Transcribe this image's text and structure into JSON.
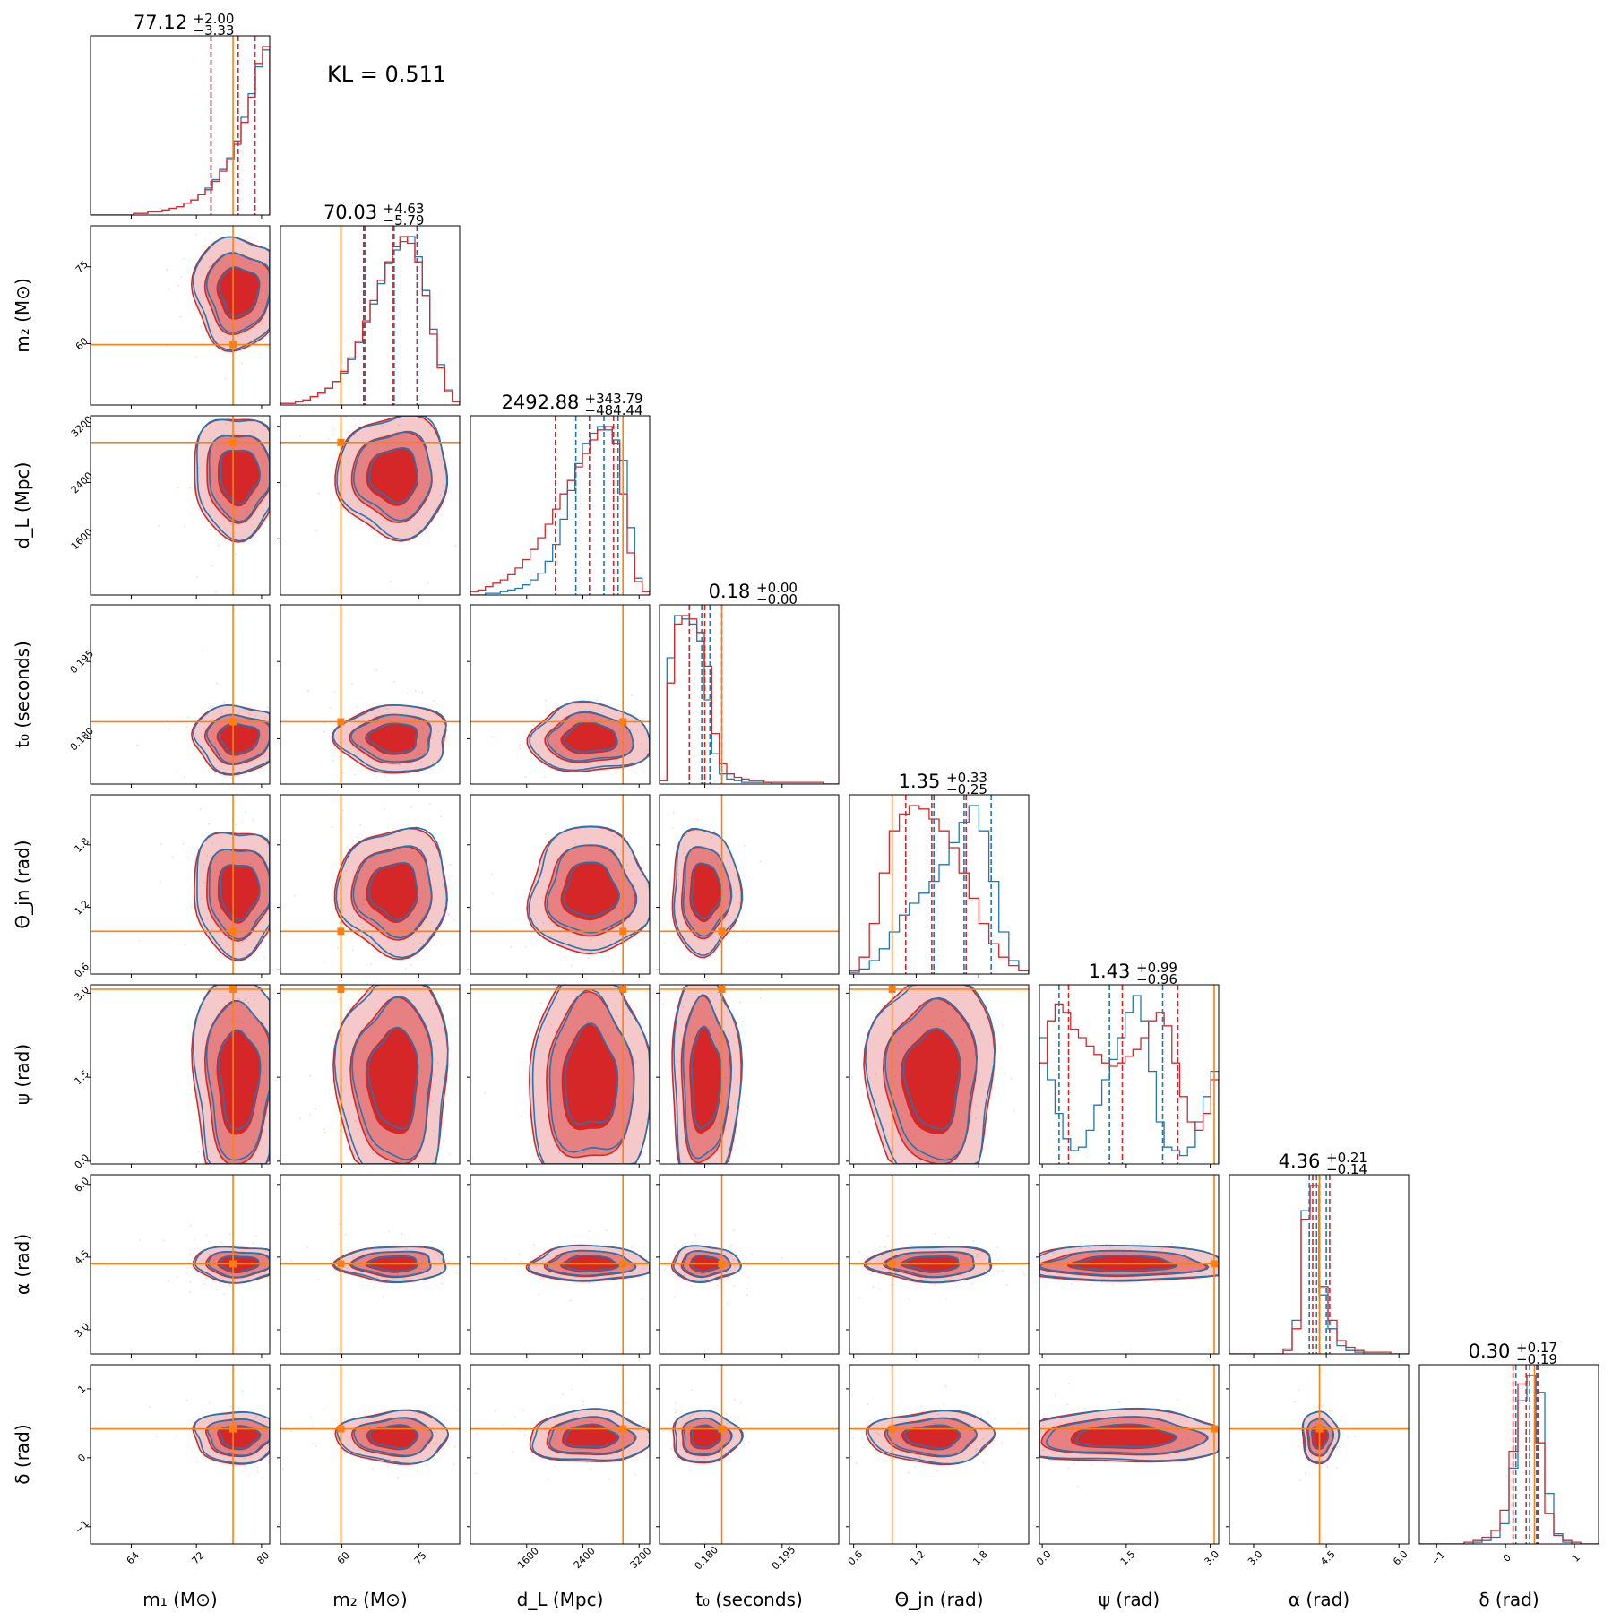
{
  "annotation": "KL = 0.511",
  "colors": {
    "series_a": "#d62728",
    "series_b": "#1f77b4",
    "truth": "#ff7f0e",
    "frame": "#000000"
  },
  "chart_data": {
    "type": "corner",
    "grid": false,
    "legend": "none",
    "parameters": [
      {
        "key": "m1",
        "label": "m₁ (M⊙)",
        "range": [
          59,
          81
        ],
        "ticks": [
          64,
          72,
          80
        ],
        "tick_labels": [
          "64",
          "72",
          "80"
        ],
        "median": 77.12,
        "plus": "+2.00",
        "minus": "−3.33",
        "title_value": "77.12",
        "truth": 76.5,
        "quantiles_a": [
          73.79,
          77.12,
          79.12
        ],
        "quantiles_b": [
          73.79,
          77.12,
          79.2
        ]
      },
      {
        "key": "m2",
        "label": "m₂ (M⊙)",
        "range": [
          48,
          83
        ],
        "ticks": [
          60,
          75
        ],
        "tick_labels": [
          "60",
          "75"
        ],
        "median": 70.03,
        "plus": "+4.63",
        "minus": "−5.79",
        "title_value": "70.03",
        "truth": 59.8,
        "quantiles_a": [
          64.24,
          70.03,
          74.66
        ],
        "quantiles_b": [
          64.5,
          70.2,
          74.8
        ]
      },
      {
        "key": "dL",
        "label": "d_L (Mpc)",
        "range": [
          800,
          3350
        ],
        "ticks": [
          1600,
          2400,
          3200
        ],
        "tick_labels": [
          "1600",
          "2400",
          "3200"
        ],
        "median": 2492.88,
        "plus": "+343.79",
        "minus": "−484.44",
        "title_value": "2492.88",
        "truth": 2970,
        "quantiles_a": [
          2008.44,
          2492.88,
          2836.67
        ],
        "quantiles_b": [
          2300,
          2700,
          2900
        ]
      },
      {
        "key": "t0",
        "label": "t₀ (seconds)",
        "range": [
          0.1712,
          0.206
        ],
        "ticks": [
          0.18,
          0.195
        ],
        "tick_labels": [
          "0.180",
          "0.195"
        ],
        "median": 0.18,
        "plus": "+0.00",
        "minus": "−0.00",
        "title_value": "0.18",
        "truth": 0.1833,
        "quantiles_a": [
          0.177,
          0.18,
          0.1833
        ],
        "quantiles_b": [
          0.177,
          0.1794,
          0.181
        ]
      },
      {
        "key": "theta_jn",
        "label": "Θ_jn (rad)",
        "range": [
          0.56,
          2.28
        ],
        "ticks": [
          0.6,
          1.2,
          1.8
        ],
        "tick_labels": [
          "0.6",
          "1.2",
          "1.8"
        ],
        "median": 1.35,
        "plus": "+0.33",
        "minus": "−0.25",
        "title_value": "1.35",
        "truth": 0.97,
        "quantiles_a": [
          1.1,
          1.35,
          1.68
        ],
        "quantiles_b": [
          1.37,
          1.66,
          1.92
        ]
      },
      {
        "key": "psi",
        "label": "ψ (rad)",
        "range": [
          -0.05,
          3.15
        ],
        "ticks": [
          0.0,
          1.5,
          3.0
        ],
        "tick_labels": [
          "0.0",
          "1.5",
          "3.0"
        ],
        "median": 1.43,
        "plus": "+0.99",
        "minus": "−0.96",
        "title_value": "1.43",
        "truth": 3.07,
        "quantiles_a": [
          0.47,
          1.43,
          2.42
        ],
        "quantiles_b": [
          0.3,
          1.2,
          2.15
        ]
      },
      {
        "key": "alpha",
        "label": "α (rad)",
        "range": [
          2.5,
          6.2
        ],
        "ticks": [
          3.0,
          4.5,
          6.0
        ],
        "tick_labels": [
          "3.0",
          "4.5",
          "6.0"
        ],
        "median": 4.36,
        "plus": "+0.21",
        "minus": "−0.14",
        "title_value": "4.36",
        "truth": 4.36,
        "quantiles_a": [
          4.22,
          4.36,
          4.57
        ],
        "quantiles_b": [
          4.15,
          4.3,
          4.5
        ]
      },
      {
        "key": "delta",
        "label": "δ (rad)",
        "range": [
          -1.25,
          1.35
        ],
        "ticks": [
          -1,
          0,
          1
        ],
        "tick_labels": [
          "−1",
          "0",
          "1"
        ],
        "median": 0.3,
        "plus": "+0.17",
        "minus": "−0.19",
        "title_value": "0.30",
        "truth": 0.42,
        "quantiles_a": [
          0.11,
          0.3,
          0.47
        ],
        "quantiles_b": [
          0.15,
          0.35,
          0.45
        ]
      }
    ],
    "row_tick_labels": {
      "m2": [
        "60",
        "75"
      ],
      "dL": [
        "1600",
        "2400",
        "3200"
      ],
      "t0": [
        "0.180",
        "0.195"
      ],
      "theta_jn": [
        "0.6",
        "1.2",
        "1.8"
      ],
      "psi": [
        "0.0",
        "1.5",
        "3.0"
      ],
      "alpha": [
        "3.0",
        "4.5",
        "6.0"
      ],
      "delta": [
        "−1",
        "0",
        "1"
      ]
    },
    "histograms": {
      "m1": {
        "a": [
          0,
          0,
          0,
          0,
          0,
          0,
          1,
          1,
          2,
          2,
          3,
          4,
          5,
          7,
          9,
          12,
          15,
          20,
          26,
          33,
          42,
          55,
          70,
          90,
          100
        ],
        "b": [
          0,
          0,
          0,
          0,
          0,
          0,
          1,
          1,
          2,
          2,
          3,
          4,
          5,
          7,
          9,
          12,
          16,
          21,
          27,
          34,
          44,
          58,
          72,
          88,
          98
        ]
      },
      "m2": {
        "a": [
          1,
          1,
          2,
          3,
          5,
          7,
          10,
          14,
          20,
          28,
          38,
          50,
          62,
          74,
          85,
          94,
          100,
          96,
          85,
          65,
          42,
          22,
          8,
          2
        ],
        "b": [
          1,
          1,
          2,
          3,
          5,
          7,
          10,
          14,
          19,
          27,
          37,
          49,
          60,
          72,
          84,
          92,
          97,
          100,
          88,
          68,
          45,
          24,
          9,
          2
        ]
      },
      "dL": {
        "a": [
          2,
          3,
          5,
          7,
          9,
          12,
          16,
          21,
          27,
          34,
          42,
          51,
          60,
          68,
          76,
          84,
          92,
          98,
          100,
          90,
          60,
          25,
          8,
          2
        ],
        "b": [
          0,
          0,
          1,
          1,
          2,
          3,
          4,
          6,
          9,
          13,
          20,
          30,
          45,
          62,
          78,
          90,
          96,
          100,
          98,
          92,
          80,
          40,
          10,
          2
        ]
      },
      "t0": {
        "a": [
          2,
          60,
          95,
          100,
          98,
          90,
          70,
          30,
          12,
          6,
          4,
          3,
          2,
          2,
          1,
          1,
          1,
          1,
          1,
          1,
          1,
          1,
          0,
          0
        ],
        "b": [
          2,
          75,
          100,
          98,
          95,
          85,
          50,
          18,
          6,
          3,
          2,
          1,
          1,
          1,
          1,
          0,
          0,
          0,
          0,
          0,
          0,
          0,
          0,
          0
        ]
      },
      "theta_jn": {
        "a": [
          2,
          10,
          30,
          60,
          85,
          95,
          100,
          98,
          92,
          85,
          75,
          60,
          45,
          30,
          18,
          10,
          5,
          2
        ],
        "b": [
          1,
          3,
          8,
          15,
          25,
          35,
          42,
          48,
          55,
          65,
          78,
          90,
          100,
          85,
          55,
          25,
          8,
          2
        ]
      },
      "psi": {
        "a": [
          60,
          85,
          95,
          90,
          80,
          75,
          70,
          65,
          60,
          58,
          60,
          64,
          68,
          75,
          85,
          90,
          82,
          60,
          40,
          25,
          20,
          30,
          50
        ],
        "b": [
          75,
          50,
          30,
          15,
          8,
          10,
          20,
          35,
          50,
          62,
          75,
          90,
          100,
          85,
          55,
          25,
          10,
          8,
          5,
          10,
          25,
          40,
          55
        ]
      },
      "alpha": {
        "a": [
          0,
          0,
          0,
          0,
          0,
          0,
          2,
          15,
          80,
          100,
          40,
          20,
          8,
          4,
          2,
          1,
          1,
          1,
          0,
          0
        ],
        "b": [
          0,
          0,
          0,
          0,
          0,
          0,
          3,
          20,
          85,
          100,
          35,
          15,
          5,
          2,
          1,
          0,
          0,
          0,
          0,
          0
        ]
      },
      "delta": {
        "a": [
          0,
          0,
          0,
          0,
          0,
          1,
          2,
          4,
          8,
          20,
          55,
          95,
          100,
          60,
          18,
          5,
          2,
          1,
          0,
          0
        ],
        "b": [
          0,
          0,
          0,
          0,
          0,
          0,
          1,
          2,
          4,
          12,
          45,
          85,
          100,
          90,
          30,
          6,
          1,
          0,
          0,
          0
        ]
      }
    }
  }
}
